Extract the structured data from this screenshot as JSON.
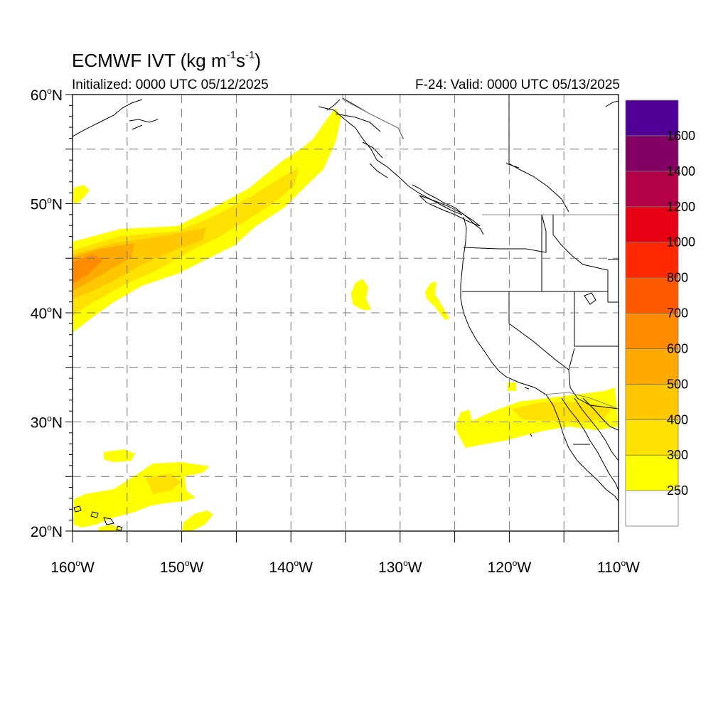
{
  "title": {
    "prefix": "ECMWF IVT (kg m",
    "exp1": "-1",
    "mid": "s",
    "exp2": "-1",
    "suffix": ")"
  },
  "subtitle_left": "Initialized: 0000 UTC 05/12/2025",
  "subtitle_right": "F-24: Valid: 0000 UTC 05/13/2025",
  "map": {
    "lon_range": [
      -160,
      -110
    ],
    "lat_range": [
      20,
      60
    ],
    "grid": true,
    "x_ticks": [
      {
        "lon": -160,
        "num": "160",
        "hem": "W"
      },
      {
        "lon": -150,
        "num": "150",
        "hem": "W"
      },
      {
        "lon": -140,
        "num": "140",
        "hem": "W"
      },
      {
        "lon": -130,
        "num": "130",
        "hem": "W"
      },
      {
        "lon": -120,
        "num": "120",
        "hem": "W"
      },
      {
        "lon": -110,
        "num": "110",
        "hem": "W"
      }
    ],
    "y_ticks": [
      {
        "lat": 60,
        "num": "60",
        "hem": "N"
      },
      {
        "lat": 50,
        "num": "50",
        "hem": "N"
      },
      {
        "lat": 40,
        "num": "40",
        "hem": "N"
      },
      {
        "lat": 30,
        "num": "30",
        "hem": "N"
      },
      {
        "lat": 20,
        "num": "20",
        "hem": "N"
      }
    ],
    "degree_symbol": "o"
  },
  "colorbar": {
    "levels": [
      "250",
      "300",
      "400",
      "500",
      "600",
      "700",
      "800",
      "1000",
      "1200",
      "1400",
      "1600"
    ],
    "colors": [
      "#ffffff",
      "#ffff00",
      "#ffe100",
      "#ffc800",
      "#ffaa00",
      "#ff8c00",
      "#ff5a00",
      "#ff2800",
      "#e60014",
      "#b40046",
      "#820064",
      "#500096"
    ]
  }
}
